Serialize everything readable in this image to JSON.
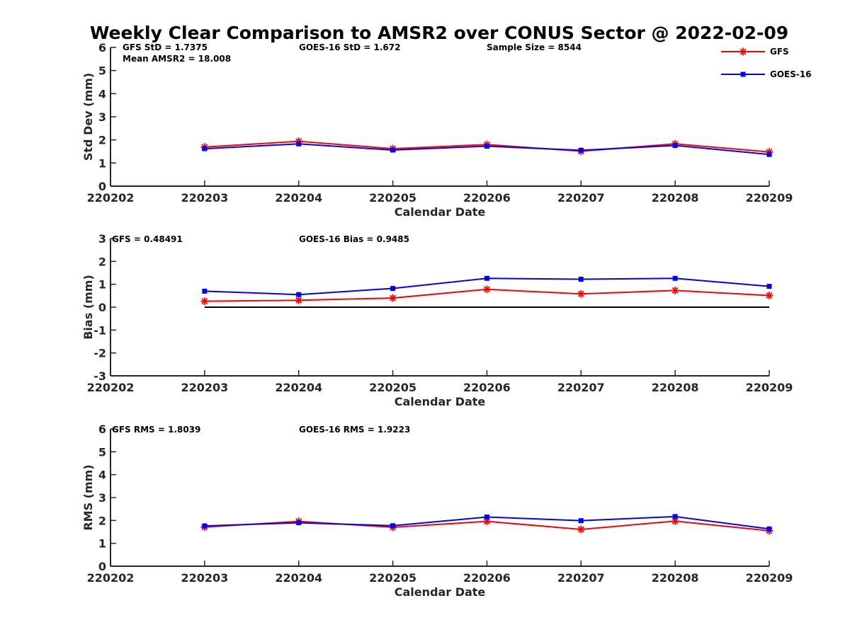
{
  "title": "Weekly Clear Comparison to AMSR2 over CONUS Sector @ 2022-02-09",
  "legend": {
    "placement": "top-right",
    "entries": [
      {
        "label": "GFS",
        "color": "#ff0000",
        "marker": "asterisk"
      },
      {
        "label": "GOES-16",
        "color": "#0000ff",
        "marker": "square"
      }
    ]
  },
  "colors": {
    "gfs": "#ff0000",
    "goes": "#0000ff",
    "axis": "#262626",
    "zero_line": "#000000"
  },
  "chart_data": [
    {
      "type": "line",
      "xlabel": "Calendar Date",
      "ylabel": "Std Dev (mm)",
      "categories": [
        "220202",
        "220203",
        "220204",
        "220205",
        "220206",
        "220207",
        "220208",
        "220209"
      ],
      "ylim": [
        0,
        6
      ],
      "yticks": [
        "0",
        "1",
        "2",
        "3",
        "4",
        "5",
        "6"
      ],
      "annotations": [
        "GFS StD = 1.7375",
        "GOES-16 StD = 1.672",
        "Sample Size = 8544",
        "Mean AMSR2 = 18.008"
      ],
      "series": [
        {
          "name": "GFS",
          "x": [
            "220203",
            "220204",
            "220205",
            "220206",
            "220207",
            "220208",
            "220209"
          ],
          "values": [
            1.69,
            1.94,
            1.62,
            1.8,
            1.51,
            1.83,
            1.48
          ]
        },
        {
          "name": "GOES-16",
          "x": [
            "220203",
            "220204",
            "220205",
            "220206",
            "220207",
            "220208",
            "220209"
          ],
          "values": [
            1.62,
            1.83,
            1.56,
            1.73,
            1.55,
            1.76,
            1.37
          ]
        }
      ],
      "zero_line": false
    },
    {
      "type": "line",
      "xlabel": "Calendar Date",
      "ylabel": "Bias (mm)",
      "categories": [
        "220202",
        "220203",
        "220204",
        "220205",
        "220206",
        "220207",
        "220208",
        "220209"
      ],
      "ylim": [
        -3,
        3
      ],
      "yticks": [
        "-3",
        "-2",
        "-1",
        "0",
        "1",
        "2",
        "3"
      ],
      "annotations": [
        "GFS = 0.48491",
        "GOES-16 Bias  = 0.9485"
      ],
      "series": [
        {
          "name": "GFS",
          "x": [
            "220203",
            "220204",
            "220205",
            "220206",
            "220207",
            "220208",
            "220209"
          ],
          "values": [
            0.26,
            0.3,
            0.4,
            0.78,
            0.58,
            0.73,
            0.51
          ]
        },
        {
          "name": "GOES-16",
          "x": [
            "220203",
            "220204",
            "220205",
            "220206",
            "220207",
            "220208",
            "220209"
          ],
          "values": [
            0.7,
            0.55,
            0.82,
            1.26,
            1.22,
            1.26,
            0.91
          ]
        }
      ],
      "zero_line": true
    },
    {
      "type": "line",
      "xlabel": "Calendar Date",
      "ylabel": "RMS (mm)",
      "categories": [
        "220202",
        "220203",
        "220204",
        "220205",
        "220206",
        "220207",
        "220208",
        "220209"
      ],
      "ylim": [
        0,
        6
      ],
      "yticks": [
        "0",
        "1",
        "2",
        "3",
        "4",
        "5",
        "6"
      ],
      "annotations": [
        "GFS RMS = 1.8039",
        "GOES-16 RMS = 1.9223"
      ],
      "series": [
        {
          "name": "GFS",
          "x": [
            "220203",
            "220204",
            "220205",
            "220206",
            "220207",
            "220208",
            "220209"
          ],
          "values": [
            1.71,
            1.96,
            1.7,
            1.96,
            1.61,
            1.97,
            1.55
          ]
        },
        {
          "name": "GOES-16",
          "x": [
            "220203",
            "220204",
            "220205",
            "220206",
            "220207",
            "220208",
            "220209"
          ],
          "values": [
            1.76,
            1.9,
            1.77,
            2.15,
            1.99,
            2.17,
            1.63
          ]
        }
      ],
      "zero_line": false
    }
  ]
}
